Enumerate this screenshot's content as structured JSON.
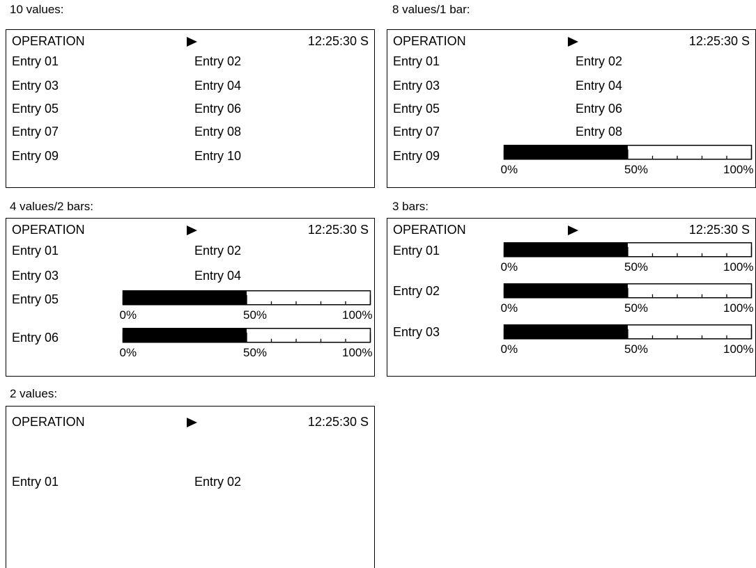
{
  "header": {
    "mode": "OPERATION",
    "status_icon": "play-icon",
    "time": "12:25:30 S"
  },
  "scale": {
    "min_label": "0%",
    "mid_label": "50%",
    "max_label": "100%"
  },
  "panels": [
    {
      "caption": "10 values:",
      "entries": [
        "Entry 01",
        "Entry 02",
        "Entry 03",
        "Entry 04",
        "Entry 05",
        "Entry 06",
        "Entry 07",
        "Entry 08",
        "Entry 09",
        "Entry 10"
      ]
    },
    {
      "caption": "8 values/1 bar:",
      "entries": [
        "Entry 01",
        "Entry 02",
        "Entry 03",
        "Entry 04",
        "Entry 05",
        "Entry 06",
        "Entry 07",
        "Entry 08"
      ],
      "bars": [
        {
          "label": "Entry 09",
          "value": 50
        }
      ]
    },
    {
      "caption": "4 values/2 bars:",
      "entries": [
        "Entry 01",
        "Entry 02",
        "Entry 03",
        "Entry 04"
      ],
      "bars": [
        {
          "label": "Entry 05",
          "value": 50
        },
        {
          "label": "Entry 06",
          "value": 50
        }
      ]
    },
    {
      "caption": "3 bars:",
      "bars": [
        {
          "label": "Entry 01",
          "value": 50
        },
        {
          "label": "Entry 02",
          "value": 50
        },
        {
          "label": "Entry 03",
          "value": 50
        }
      ]
    },
    {
      "caption": "2 values:",
      "entries": [
        "Entry 01",
        "Entry 02"
      ]
    }
  ]
}
